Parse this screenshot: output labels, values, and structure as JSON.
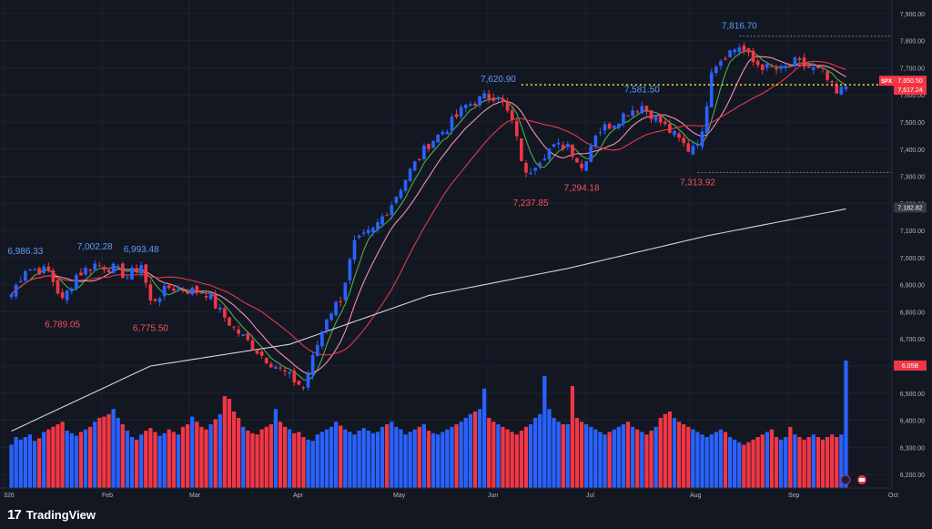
{
  "brand": {
    "logo": "17",
    "name": "TradingView"
  },
  "colors": {
    "background": "#131722",
    "up": "#2962ff",
    "down": "#f23645",
    "ma_fast": "#4caf50",
    "ma_mid": "#f48fb1",
    "ma_slow": "#e53946",
    "ma_long": "#d1d4dc",
    "grid": "#1e222d",
    "axis_text": "#b2b5be",
    "last_price_line": "#ffeb3b"
  },
  "chart_data": {
    "type": "candlestick",
    "symbol": "SPX",
    "y_ticks": [
      "7,900.00",
      "7,800.00",
      "7,700.00",
      "7,600.00",
      "7,500.00",
      "7,400.00",
      "7,300.00",
      "7,200.00",
      "7,100.00",
      "7,000.00",
      "6,900.00",
      "6,800.00",
      "6,700.00",
      "6,600.00",
      "6,500.00",
      "6,400.00",
      "6,300.00",
      "6,200.00"
    ],
    "ylim": [
      6150,
      7950
    ],
    "x_ticks": [
      "326",
      "Feb",
      "Mar",
      "Apr",
      "May",
      "Jun",
      "Jul",
      "Aug",
      "Sep",
      "Oct"
    ],
    "price_labels": {
      "symbol": "SPX",
      "last": "7,650.50",
      "ma": "7,617.24",
      "ma_long": "7,182.82",
      "volume": "6.05B"
    },
    "annotations": [
      {
        "text": "6,986.33",
        "kind": "high",
        "i": 3,
        "price": 6986.33
      },
      {
        "text": "7,002.28",
        "kind": "high",
        "i": 18,
        "price": 7002.28
      },
      {
        "text": "6,993.48",
        "kind": "high",
        "i": 28,
        "price": 6993.48
      },
      {
        "text": "6,789.05",
        "kind": "low",
        "i": 11,
        "price": 6789.05
      },
      {
        "text": "6,775.50",
        "kind": "low",
        "i": 30,
        "price": 6775.5
      },
      {
        "text": "7,620.90",
        "kind": "high",
        "i": 105,
        "price": 7620.9
      },
      {
        "text": "7,237.85",
        "kind": "low",
        "i": 112,
        "price": 7237.85
      },
      {
        "text": "7,294.18",
        "kind": "low",
        "i": 123,
        "price": 7294.18
      },
      {
        "text": "7,581.50",
        "kind": "high",
        "i": 136,
        "price": 7581.5
      },
      {
        "text": "7,313.92",
        "kind": "low",
        "i": 148,
        "price": 7313.92
      },
      {
        "text": "7,816.70",
        "kind": "high",
        "i": 157,
        "price": 7816.7
      }
    ],
    "close_anchors": [
      [
        0,
        6865
      ],
      [
        3,
        6960
      ],
      [
        8,
        6950
      ],
      [
        11,
        6840
      ],
      [
        14,
        6935
      ],
      [
        18,
        6975
      ],
      [
        22,
        6960
      ],
      [
        25,
        6930
      ],
      [
        28,
        6975
      ],
      [
        30,
        6835
      ],
      [
        34,
        6890
      ],
      [
        38,
        6880
      ],
      [
        42,
        6870
      ],
      [
        45,
        6800
      ],
      [
        48,
        6740
      ],
      [
        51,
        6690
      ],
      [
        54,
        6640
      ],
      [
        57,
        6600
      ],
      [
        60,
        6560
      ],
      [
        63,
        6520
      ],
      [
        66,
        6680
      ],
      [
        68,
        6780
      ],
      [
        71,
        6850
      ],
      [
        74,
        7050
      ],
      [
        78,
        7100
      ],
      [
        82,
        7200
      ],
      [
        86,
        7320
      ],
      [
        90,
        7420
      ],
      [
        94,
        7480
      ],
      [
        98,
        7560
      ],
      [
        102,
        7590
      ],
      [
        105,
        7600
      ],
      [
        108,
        7500
      ],
      [
        111,
        7300
      ],
      [
        113,
        7350
      ],
      [
        116,
        7400
      ],
      [
        120,
        7420
      ],
      [
        123,
        7330
      ],
      [
        126,
        7460
      ],
      [
        130,
        7500
      ],
      [
        133,
        7540
      ],
      [
        136,
        7560
      ],
      [
        140,
        7500
      ],
      [
        143,
        7450
      ],
      [
        146,
        7400
      ],
      [
        149,
        7450
      ],
      [
        151,
        7700
      ],
      [
        154,
        7750
      ],
      [
        157,
        7780
      ],
      [
        160,
        7720
      ],
      [
        163,
        7700
      ],
      [
        166,
        7690
      ],
      [
        169,
        7720
      ],
      [
        172,
        7700
      ],
      [
        175,
        7680
      ],
      [
        178,
        7600
      ],
      [
        181,
        7650
      ]
    ],
    "ma_long_anchors": [
      [
        0,
        6360
      ],
      [
        30,
        6600
      ],
      [
        60,
        6680
      ],
      [
        90,
        6860
      ],
      [
        120,
        6960
      ],
      [
        150,
        7080
      ],
      [
        181,
        7182.82
      ]
    ],
    "volume_heights": [
      0.34,
      0.4,
      0.38,
      0.4,
      0.42,
      0.37,
      0.39,
      0.44,
      0.46,
      0.48,
      0.5,
      0.52,
      0.45,
      0.43,
      0.41,
      0.44,
      0.46,
      0.48,
      0.52,
      0.55,
      0.56,
      0.58,
      0.62,
      0.55,
      0.5,
      0.45,
      0.4,
      0.38,
      0.42,
      0.45,
      0.47,
      0.44,
      0.41,
      0.43,
      0.46,
      0.44,
      0.42,
      0.48,
      0.5,
      0.56,
      0.52,
      0.48,
      0.46,
      0.5,
      0.54,
      0.58,
      0.72,
      0.7,
      0.6,
      0.55,
      0.48,
      0.45,
      0.43,
      0.42,
      0.46,
      0.48,
      0.5,
      0.62,
      0.52,
      0.48,
      0.46,
      0.43,
      0.44,
      0.4,
      0.38,
      0.37,
      0.42,
      0.44,
      0.46,
      0.48,
      0.52,
      0.49,
      0.46,
      0.44,
      0.42,
      0.45,
      0.47,
      0.45,
      0.43,
      0.44,
      0.48,
      0.5,
      0.52,
      0.48,
      0.46,
      0.42,
      0.44,
      0.46,
      0.48,
      0.5,
      0.45,
      0.43,
      0.42,
      0.44,
      0.46,
      0.48,
      0.5,
      0.52,
      0.55,
      0.58,
      0.6,
      0.62,
      0.78,
      0.55,
      0.52,
      0.5,
      0.48,
      0.46,
      0.44,
      0.42,
      0.45,
      0.48,
      0.5,
      0.55,
      0.58,
      0.88,
      0.62,
      0.55,
      0.52,
      0.5,
      0.5,
      0.8,
      0.55,
      0.52,
      0.5,
      0.48,
      0.46,
      0.44,
      0.42,
      0.44,
      0.46,
      0.48,
      0.5,
      0.52,
      0.48,
      0.46,
      0.44,
      0.42,
      0.45,
      0.48,
      0.55,
      0.58,
      0.6,
      0.55,
      0.52,
      0.5,
      0.48,
      0.46,
      0.44,
      0.42,
      0.4,
      0.42,
      0.44,
      0.46,
      0.44,
      0.4,
      0.38,
      0.36,
      0.34,
      0.36,
      0.38,
      0.4,
      0.42,
      0.44,
      0.46,
      0.4,
      0.38,
      0.4,
      0.48,
      0.42,
      0.4,
      0.38,
      0.4,
      0.42,
      0.4,
      0.38,
      0.4,
      0.42,
      0.4,
      0.42,
      1.0
    ]
  }
}
